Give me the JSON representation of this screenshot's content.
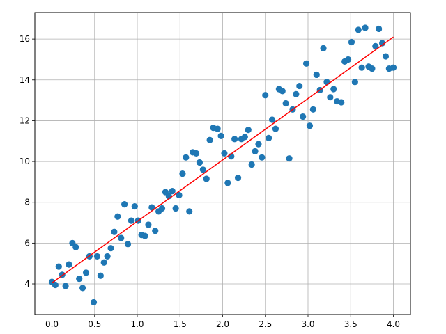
{
  "chart_data": {
    "type": "scatter",
    "title": "",
    "xlabel": "",
    "ylabel": "",
    "xlim": [
      -0.2,
      4.2
    ],
    "ylim": [
      2.5,
      17.3
    ],
    "grid": true,
    "x_ticks": [
      0.0,
      0.5,
      1.0,
      1.5,
      2.0,
      2.5,
      3.0,
      3.5,
      4.0
    ],
    "x_tick_labels": [
      "0.0",
      "0.5",
      "1.0",
      "1.5",
      "2.0",
      "2.5",
      "3.0",
      "3.5",
      "4.0"
    ],
    "y_ticks": [
      4,
      6,
      8,
      10,
      12,
      14,
      16
    ],
    "y_tick_labels": [
      "4",
      "6",
      "8",
      "10",
      "12",
      "14",
      "16"
    ],
    "colors": {
      "points": "#1f77b4",
      "fit_line": "#ff0000",
      "grid": "#b0b0b0"
    },
    "series": [
      {
        "kind": "points",
        "points": [
          [
            0.0,
            4.1
          ],
          [
            0.04,
            3.95
          ],
          [
            0.08,
            4.85
          ],
          [
            0.12,
            4.45
          ],
          [
            0.16,
            3.9
          ],
          [
            0.2,
            4.95
          ],
          [
            0.24,
            6.0
          ],
          [
            0.28,
            5.8
          ],
          [
            0.32,
            4.25
          ],
          [
            0.36,
            3.8
          ],
          [
            0.4,
            4.55
          ],
          [
            0.44,
            5.35
          ],
          [
            0.49,
            3.1
          ],
          [
            0.53,
            5.35
          ],
          [
            0.57,
            4.4
          ],
          [
            0.61,
            5.05
          ],
          [
            0.65,
            5.35
          ],
          [
            0.69,
            5.75
          ],
          [
            0.73,
            6.55
          ],
          [
            0.77,
            7.3
          ],
          [
            0.81,
            6.25
          ],
          [
            0.85,
            7.9
          ],
          [
            0.89,
            5.95
          ],
          [
            0.93,
            7.1
          ],
          [
            0.97,
            7.8
          ],
          [
            1.01,
            7.1
          ],
          [
            1.05,
            6.4
          ],
          [
            1.09,
            6.35
          ],
          [
            1.13,
            6.9
          ],
          [
            1.17,
            7.75
          ],
          [
            1.21,
            6.6
          ],
          [
            1.25,
            7.55
          ],
          [
            1.29,
            7.7
          ],
          [
            1.33,
            8.5
          ],
          [
            1.37,
            8.3
          ],
          [
            1.41,
            8.55
          ],
          [
            1.45,
            7.7
          ],
          [
            1.49,
            8.35
          ],
          [
            1.53,
            9.4
          ],
          [
            1.57,
            10.2
          ],
          [
            1.61,
            7.55
          ],
          [
            1.65,
            10.45
          ],
          [
            1.69,
            10.4
          ],
          [
            1.73,
            9.95
          ],
          [
            1.77,
            9.6
          ],
          [
            1.81,
            9.15
          ],
          [
            1.85,
            11.05
          ],
          [
            1.89,
            11.65
          ],
          [
            1.94,
            11.6
          ],
          [
            1.98,
            11.25
          ],
          [
            2.02,
            10.4
          ],
          [
            2.06,
            8.95
          ],
          [
            2.1,
            10.25
          ],
          [
            2.14,
            11.1
          ],
          [
            2.18,
            9.2
          ],
          [
            2.22,
            11.1
          ],
          [
            2.26,
            11.2
          ],
          [
            2.3,
            11.55
          ],
          [
            2.34,
            9.85
          ],
          [
            2.38,
            10.5
          ],
          [
            2.42,
            10.85
          ],
          [
            2.46,
            10.2
          ],
          [
            2.5,
            13.25
          ],
          [
            2.54,
            11.15
          ],
          [
            2.58,
            12.05
          ],
          [
            2.62,
            11.6
          ],
          [
            2.66,
            13.55
          ],
          [
            2.7,
            13.45
          ],
          [
            2.74,
            12.85
          ],
          [
            2.78,
            10.15
          ],
          [
            2.82,
            12.55
          ],
          [
            2.86,
            13.3
          ],
          [
            2.9,
            13.7
          ],
          [
            2.94,
            12.2
          ],
          [
            2.98,
            14.8
          ],
          [
            3.02,
            11.75
          ],
          [
            3.06,
            12.55
          ],
          [
            3.1,
            14.25
          ],
          [
            3.14,
            13.5
          ],
          [
            3.18,
            15.55
          ],
          [
            3.22,
            13.9
          ],
          [
            3.26,
            13.15
          ],
          [
            3.3,
            13.55
          ],
          [
            3.34,
            12.95
          ],
          [
            3.39,
            12.9
          ],
          [
            3.43,
            14.9
          ],
          [
            3.47,
            15.0
          ],
          [
            3.51,
            15.85
          ],
          [
            3.55,
            13.9
          ],
          [
            3.59,
            16.45
          ],
          [
            3.63,
            14.6
          ],
          [
            3.67,
            16.55
          ],
          [
            3.71,
            14.65
          ],
          [
            3.75,
            14.55
          ],
          [
            3.79,
            15.65
          ],
          [
            3.83,
            16.5
          ],
          [
            3.87,
            15.8
          ],
          [
            3.91,
            15.15
          ],
          [
            3.95,
            14.55
          ],
          [
            4.0,
            14.6
          ]
        ]
      },
      {
        "kind": "line",
        "points": [
          [
            0.0,
            4.05
          ],
          [
            4.0,
            16.1
          ]
        ]
      }
    ]
  }
}
